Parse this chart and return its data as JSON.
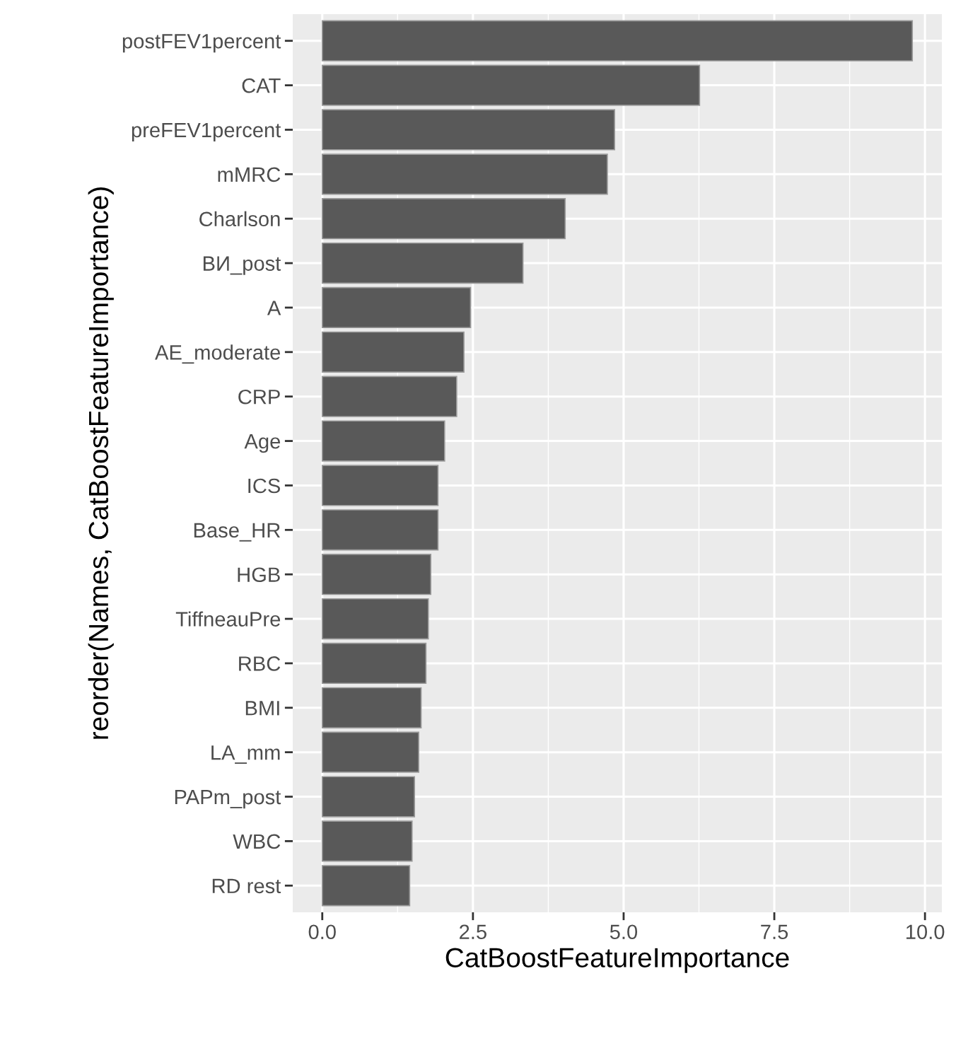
{
  "chart_data": {
    "type": "bar",
    "orientation": "horizontal",
    "xlabel": "CatBoostFeatureImportance",
    "ylabel": "reorder(Names, CatBoostFeatureImportance)",
    "categories": [
      "postFEV1percent",
      "CAT",
      "preFEV1percent",
      "mMRC",
      "Charlson",
      "ВИ_post",
      "A",
      "AE_moderate",
      "CRP",
      "Age",
      "ICS",
      "Base_HR",
      "HGB",
      "TiffneauPre",
      "RBC",
      "BMI",
      "LA_mm",
      "PAPm_post",
      "WBC",
      "RD rest"
    ],
    "values": [
      9.79,
      6.26,
      4.85,
      4.73,
      4.03,
      3.33,
      2.46,
      2.35,
      2.23,
      2.03,
      1.92,
      1.92,
      1.8,
      1.76,
      1.72,
      1.64,
      1.6,
      1.53,
      1.49,
      1.45
    ],
    "color": "#595959",
    "xlim": [
      -0.49,
      10.28
    ],
    "xticks": [
      {
        "value": 0,
        "label": "0.0"
      },
      2.5,
      {
        "value": 5,
        "label": "5.0"
      },
      7.5,
      {
        "value": 10,
        "label": "10.0"
      }
    ],
    "grid": true
  }
}
